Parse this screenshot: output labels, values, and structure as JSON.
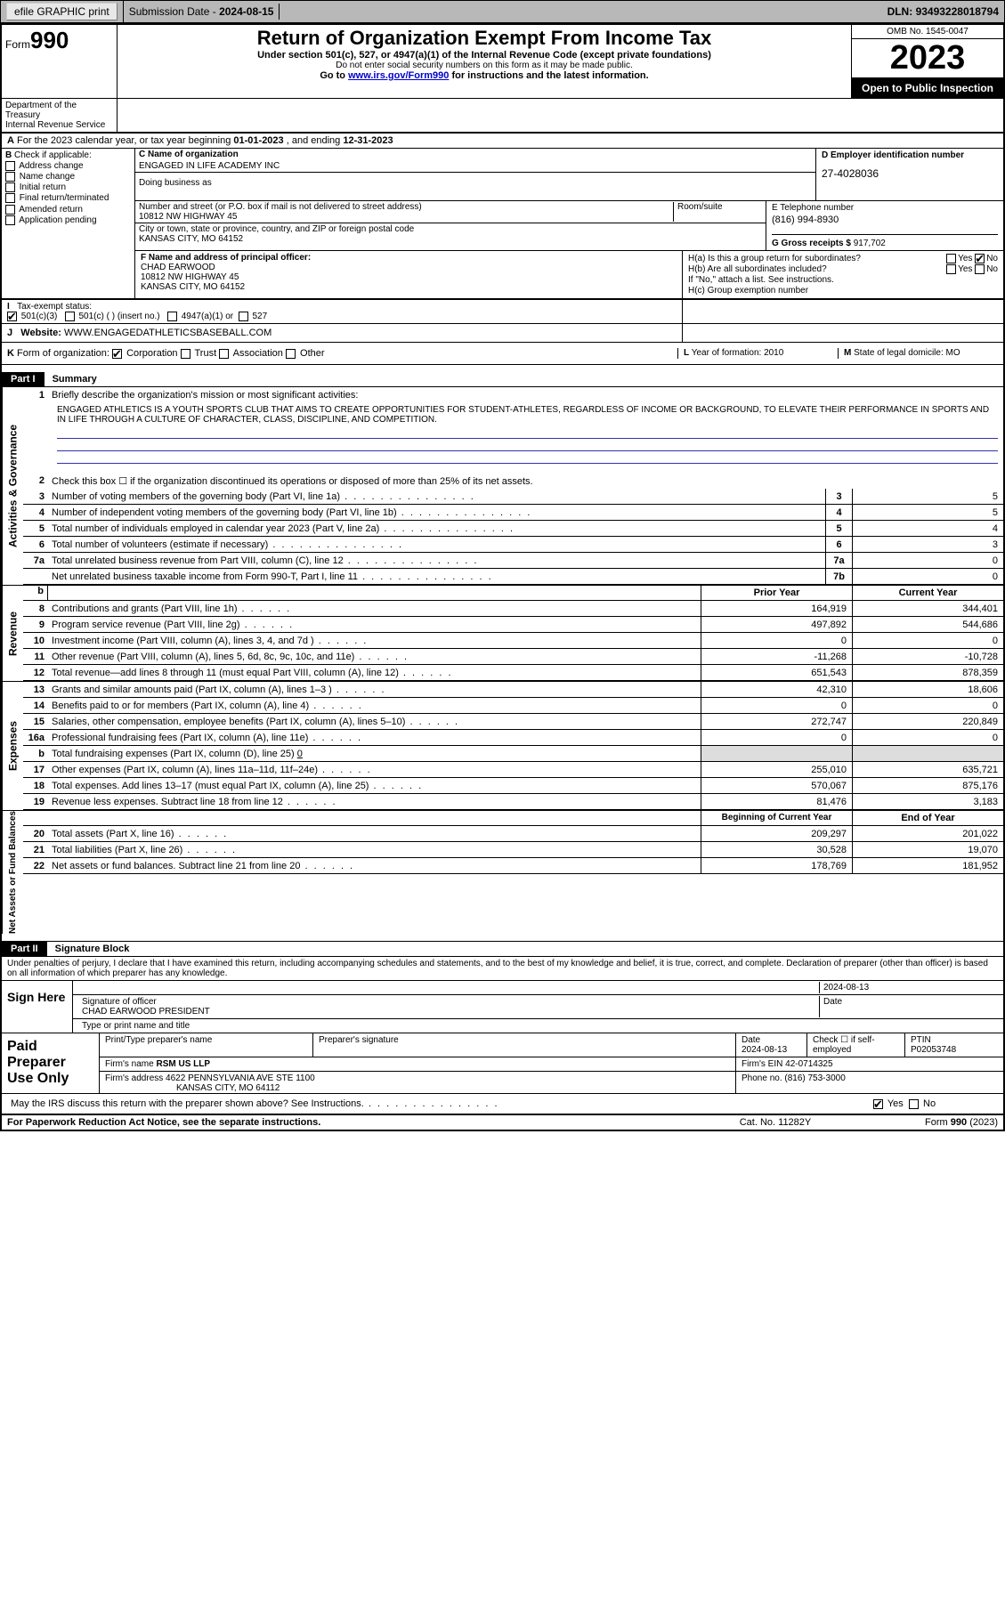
{
  "topbar": {
    "efile": "efile GRAPHIC print",
    "submission_label": "Submission Date - ",
    "submission_date": "2024-08-15",
    "dln_label": "DLN: ",
    "dln": "93493228018794"
  },
  "header": {
    "form_word": "Form",
    "form_num": "990",
    "title": "Return of Organization Exempt From Income Tax",
    "subtitle": "Under section 501(c), 527, or 4947(a)(1) of the Internal Revenue Code (except private foundations)",
    "ssn_warn": "Do not enter social security numbers on this form as it may be made public.",
    "goto": "Go to ",
    "goto_link": "www.irs.gov/Form990",
    "goto_rest": " for instructions and the latest information.",
    "omb": "OMB No. 1545-0047",
    "year": "2023",
    "open": "Open to Public Inspection",
    "dept": "Department of the Treasury",
    "irs": "Internal Revenue Service"
  },
  "row_a": {
    "prefix": "A",
    "text": "For the 2023 calendar year, or tax year beginning ",
    "begin": "01-01-2023",
    "mid": "  , and ending ",
    "end": "12-31-2023"
  },
  "section_b": {
    "label": "B",
    "check_label": " Check if applicable:",
    "opts": [
      "Address change",
      "Name change",
      "Initial return",
      "Final return/terminated",
      "Amended return",
      "Application pending"
    ]
  },
  "section_c": {
    "name_label": "C Name of organization",
    "org_name": "ENGAGED IN LIFE ACADEMY INC",
    "dba": "Doing business as",
    "street_label": "Number and street (or P.O. box if mail is not delivered to street address)",
    "room_label": "Room/suite",
    "street": "10812 NW HIGHWAY 45",
    "city_label": "City or town, state or province, country, and ZIP or foreign postal code",
    "city": "KANSAS CITY, MO  64152"
  },
  "section_d": {
    "label": "D Employer identification number",
    "ein": "27-4028036"
  },
  "section_e": {
    "label": "E Telephone number",
    "phone": "(816) 994-8930"
  },
  "section_g": {
    "label": "G Gross receipts $ ",
    "val": "917,702"
  },
  "section_f": {
    "label": "F Name and address of principal officer:",
    "name": "CHAD EARWOOD",
    "addr1": "10812 NW HIGHWAY 45",
    "addr2": "KANSAS CITY, MO  64152"
  },
  "section_h": {
    "ha": "H(a)  Is this a group return for subordinates?",
    "hb": "H(b)  Are all subordinates included?",
    "hb_note": "If \"No,\" attach a list. See instructions.",
    "hc": "H(c)  Group exemption number ",
    "yes": "Yes",
    "no": "No"
  },
  "section_i": {
    "label": "I",
    "tax": "Tax-exempt status:",
    "c3": "501(c)(3)",
    "c": "501(c) (  ) (insert no.)",
    "a4947": "4947(a)(1) or",
    "s527": "527"
  },
  "section_j": {
    "label": "J",
    "web_label": "Website: ",
    "website": "WWW.ENGAGEDATHLETICSBASEBALL.COM"
  },
  "section_k": {
    "label": "K",
    "form_org": "Form of organization:",
    "opts": [
      "Corporation",
      "Trust",
      "Association",
      "Other"
    ],
    "l_label": "L",
    "year_form": "Year of formation: ",
    "year": "2010",
    "m_label": "M",
    "state_label": "State of legal domicile:",
    "state": "MO"
  },
  "part1": {
    "header": "Part I",
    "title": "Summary",
    "l1_label": "Briefly describe the organization's mission or most significant activities:",
    "mission": "ENGAGED ATHLETICS IS A YOUTH SPORTS CLUB THAT AIMS TO CREATE OPPORTUNITIES FOR STUDENT-ATHLETES, REGARDLESS OF INCOME OR BACKGROUND, TO ELEVATE THEIR PERFORMANCE IN SPORTS AND IN LIFE THROUGH A CULTURE OF CHARACTER, CLASS, DISCIPLINE, AND COMPETITION.",
    "l2": "Check this box ☐ if the organization discontinued its operations or disposed of more than 25% of its net assets.",
    "gov_lines": [
      {
        "n": "3",
        "t": "Number of voting members of the governing body (Part VI, line 1a)",
        "box": "3",
        "v": "5"
      },
      {
        "n": "4",
        "t": "Number of independent voting members of the governing body (Part VI, line 1b)",
        "box": "4",
        "v": "5"
      },
      {
        "n": "5",
        "t": "Total number of individuals employed in calendar year 2023 (Part V, line 2a)",
        "box": "5",
        "v": "4"
      },
      {
        "n": "6",
        "t": "Total number of volunteers (estimate if necessary)",
        "box": "6",
        "v": "3"
      },
      {
        "n": "7a",
        "t": "Total unrelated business revenue from Part VIII, column (C), line 12",
        "box": "7a",
        "v": "0"
      },
      {
        "n": "",
        "t": "Net unrelated business taxable income from Form 990-T, Part I, line 11",
        "box": "7b",
        "v": "0"
      }
    ],
    "prior_head": "Prior Year",
    "curr_head": "Current Year",
    "rev_lines": [
      {
        "n": "8",
        "t": "Contributions and grants (Part VIII, line 1h)",
        "p": "164,919",
        "c": "344,401"
      },
      {
        "n": "9",
        "t": "Program service revenue (Part VIII, line 2g)",
        "p": "497,892",
        "c": "544,686"
      },
      {
        "n": "10",
        "t": "Investment income (Part VIII, column (A), lines 3, 4, and 7d )",
        "p": "0",
        "c": "0"
      },
      {
        "n": "11",
        "t": "Other revenue (Part VIII, column (A), lines 5, 6d, 8c, 9c, 10c, and 11e)",
        "p": "-11,268",
        "c": "-10,728"
      },
      {
        "n": "12",
        "t": "Total revenue—add lines 8 through 11 (must equal Part VIII, column (A), line 12)",
        "p": "651,543",
        "c": "878,359"
      }
    ],
    "exp_lines": [
      {
        "n": "13",
        "t": "Grants and similar amounts paid (Part IX, column (A), lines 1–3 )",
        "p": "42,310",
        "c": "18,606"
      },
      {
        "n": "14",
        "t": "Benefits paid to or for members (Part IX, column (A), line 4)",
        "p": "0",
        "c": "0"
      },
      {
        "n": "15",
        "t": "Salaries, other compensation, employee benefits (Part IX, column (A), lines 5–10)",
        "p": "272,747",
        "c": "220,849"
      },
      {
        "n": "16a",
        "t": "Professional fundraising fees (Part IX, column (A), line 11e)",
        "p": "0",
        "c": "0"
      }
    ],
    "l16b_label": "b",
    "l16b": "Total fundraising expenses (Part IX, column (D), line 25)  ",
    "l16b_val": "0",
    "exp_lines2": [
      {
        "n": "17",
        "t": "Other expenses (Part IX, column (A), lines 11a–11d, 11f–24e)",
        "p": "255,010",
        "c": "635,721"
      },
      {
        "n": "18",
        "t": "Total expenses. Add lines 13–17 (must equal Part IX, column (A), line 25)",
        "p": "570,067",
        "c": "875,176"
      },
      {
        "n": "19",
        "t": "Revenue less expenses. Subtract line 18 from line 12",
        "p": "81,476",
        "c": "3,183"
      }
    ],
    "begin_head": "Beginning of Current Year",
    "end_head": "End of Year",
    "na_lines": [
      {
        "n": "20",
        "t": "Total assets (Part X, line 16)",
        "p": "209,297",
        "c": "201,022"
      },
      {
        "n": "21",
        "t": "Total liabilities (Part X, line 26)",
        "p": "30,528",
        "c": "19,070"
      },
      {
        "n": "22",
        "t": "Net assets or fund balances. Subtract line 21 from line 20",
        "p": "178,769",
        "c": "181,952"
      }
    ],
    "side_gov": "Activities & Governance",
    "side_rev": "Revenue",
    "side_exp": "Expenses",
    "side_na": "Net Assets or Fund Balances"
  },
  "part2": {
    "header": "Part II",
    "title": "Signature Block",
    "perjury": "Under penalties of perjury, I declare that I have examined this return, including accompanying schedules and statements, and to the best of my knowledge and belief, it is true, correct, and complete. Declaration of preparer (other than officer) is based on all information of which preparer has any knowledge.",
    "sign_here": "Sign Here",
    "sig_officer": "Signature of officer",
    "sig_name": "CHAD EARWOOD PRESIDENT",
    "sig_type": "Type or print name and title",
    "sig_date_label": "Date",
    "sig_date": "2024-08-13",
    "paid": "Paid Preparer Use Only",
    "p_name_label": "Print/Type preparer's name",
    "p_sig_label": "Preparer's signature",
    "p_date_label": "Date",
    "p_date": "2024-08-13",
    "p_check": "Check ☐ if self-employed",
    "ptin_label": "PTIN",
    "ptin": "P02053748",
    "firm_name_label": "Firm's name   ",
    "firm_name": "RSM US LLP",
    "firm_ein_label": "Firm's EIN  ",
    "firm_ein": "42-0714325",
    "firm_addr_label": "Firm's address  ",
    "firm_addr1": "4622 PENNSYLVANIA AVE STE 1100",
    "firm_addr2": "KANSAS CITY, MO  64112",
    "firm_phone_label": "Phone no. ",
    "firm_phone": "(816) 753-3000",
    "discuss": "May the IRS discuss this return with the preparer shown above? See Instructions.",
    "yes": "Yes",
    "no": "No"
  },
  "footer": {
    "paperwork": "For Paperwork Reduction Act Notice, see the separate instructions.",
    "cat": "Cat. No. 11282Y",
    "formno": "Form 990 (2023)"
  }
}
